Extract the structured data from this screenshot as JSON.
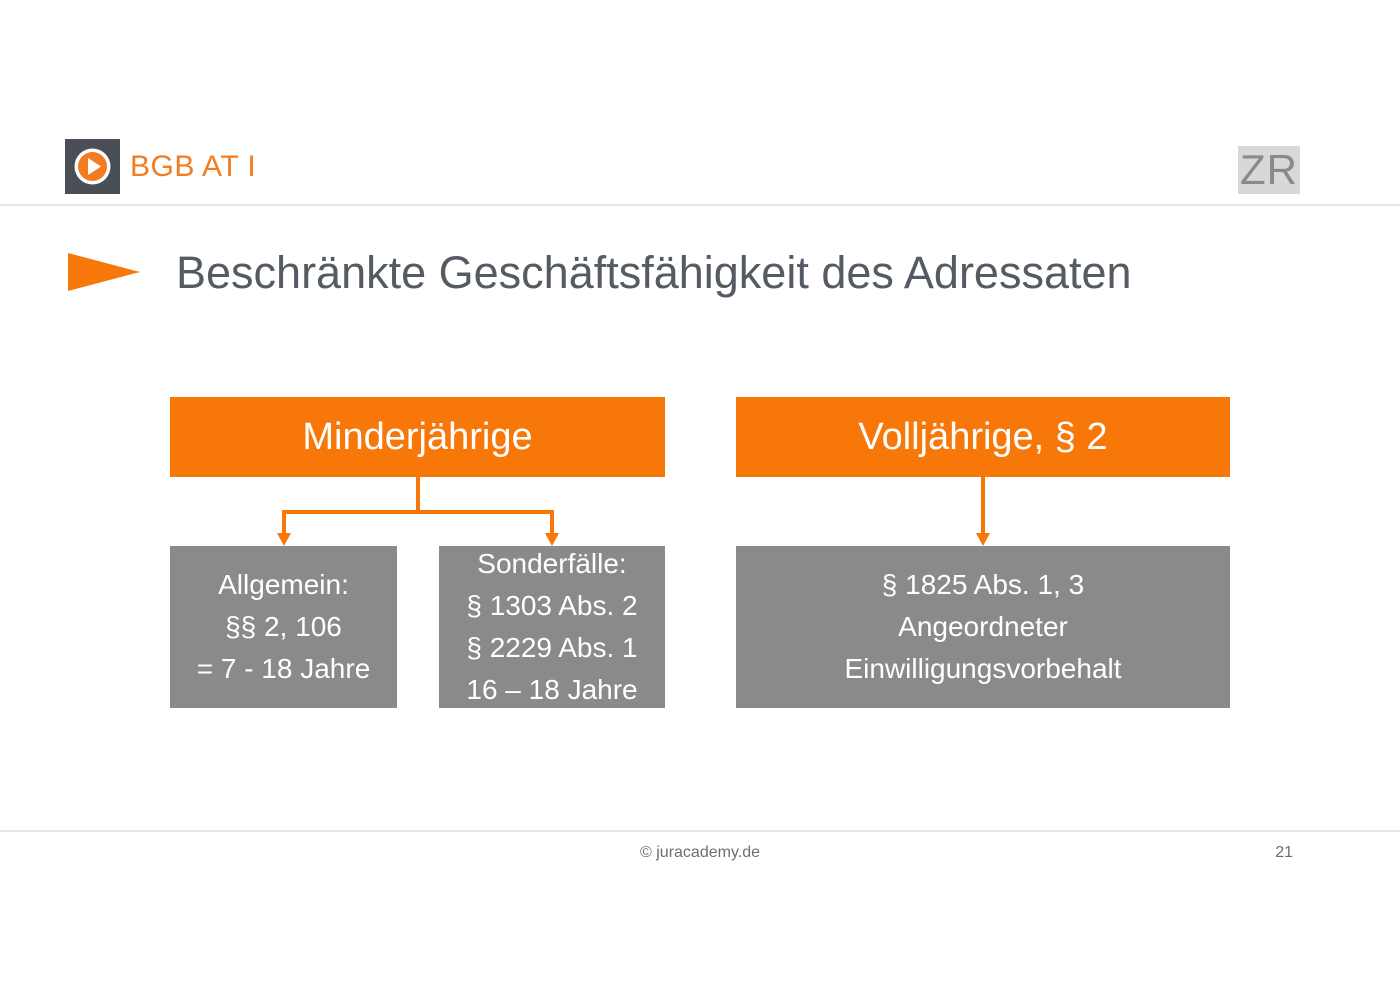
{
  "header": {
    "course_title": "BGB AT I",
    "subject_badge": "ZR",
    "logo_icon": "play-icon"
  },
  "slide": {
    "title": "Beschränkte Geschäftsfähigkeit des Adressaten"
  },
  "diagram": {
    "minor": {
      "label": "Minderjährige",
      "general": [
        "Allgemein:",
        "§§ 2, 106",
        "= 7 - 18 Jahre"
      ],
      "special": [
        "Sonderfälle:",
        "§ 1303 Abs. 2",
        "§ 2229 Abs. 1",
        "16 – 18 Jahre"
      ]
    },
    "adult": {
      "label": "Volljährige, § 2",
      "detail": [
        "§ 1825 Abs. 1, 3",
        "Angeordneter",
        "Einwilligungsvorbehalt"
      ]
    }
  },
  "footer": {
    "copyright": "© juracademy.de",
    "page_number": "21"
  },
  "colors": {
    "accent": "#f77709",
    "box_gray": "#8a8a8a",
    "title_text": "#555b63",
    "logo_bg": "#4a4e57"
  }
}
